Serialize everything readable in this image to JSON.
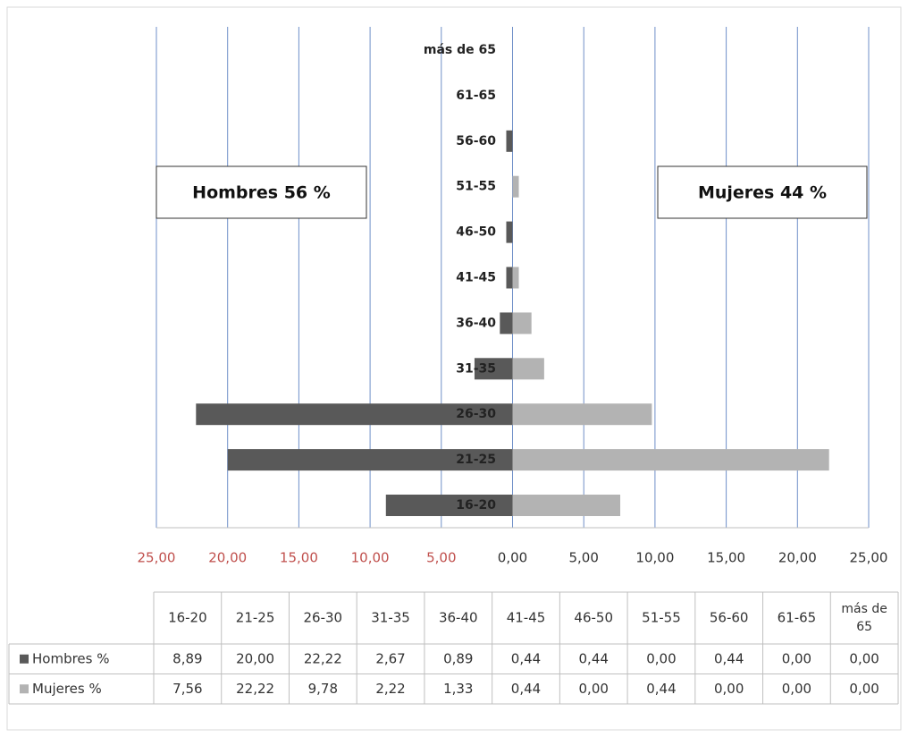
{
  "chart_data": {
    "type": "pyramid",
    "categories": [
      "16-20",
      "21-25",
      "26-30",
      "31-35",
      "36-40",
      "41-45",
      "46-50",
      "51-55",
      "56-60",
      "61-65",
      "más de 65"
    ],
    "series": [
      {
        "name": "Hombres %",
        "color": "#595959",
        "side": "left",
        "values": [
          8.89,
          20.0,
          22.22,
          2.67,
          0.89,
          0.44,
          0.44,
          0.0,
          0.44,
          0.0,
          0.0
        ],
        "value_labels": [
          "8,89",
          "20,00",
          "22,22",
          "2,67",
          "0,89",
          "0,44",
          "0,44",
          "0,00",
          "0,44",
          "0,00",
          "0,00"
        ]
      },
      {
        "name": "Mujeres %",
        "color": "#b3b3b3",
        "side": "right",
        "values": [
          7.56,
          22.22,
          9.78,
          2.22,
          1.33,
          0.44,
          0.0,
          0.44,
          0.0,
          0.0,
          0.0
        ],
        "value_labels": [
          "7,56",
          "22,22",
          "9,78",
          "2,22",
          "1,33",
          "0,44",
          "0,00",
          "0,44",
          "0,00",
          "0,00",
          "0,00"
        ]
      }
    ],
    "annotations": [
      "Hombres  56 %",
      "Mujeres  44 %"
    ],
    "xlim": [
      -25,
      25
    ],
    "xticks": [
      {
        "value": -25,
        "label": "25,00"
      },
      {
        "value": -20,
        "label": "20,00"
      },
      {
        "value": -15,
        "label": "15,00"
      },
      {
        "value": -10,
        "label": "10,00"
      },
      {
        "value": -5,
        "label": "5,00"
      },
      {
        "value": 0,
        "label": "0,00"
      },
      {
        "value": 5,
        "label": "5,00"
      },
      {
        "value": 10,
        "label": "10,00"
      },
      {
        "value": 15,
        "label": "15,00"
      },
      {
        "value": 20,
        "label": "20,00"
      },
      {
        "value": 25,
        "label": "25,00"
      }
    ],
    "negative_tick_color": "#c0504d",
    "grid": true,
    "grid_color": "#6f8fc8"
  }
}
